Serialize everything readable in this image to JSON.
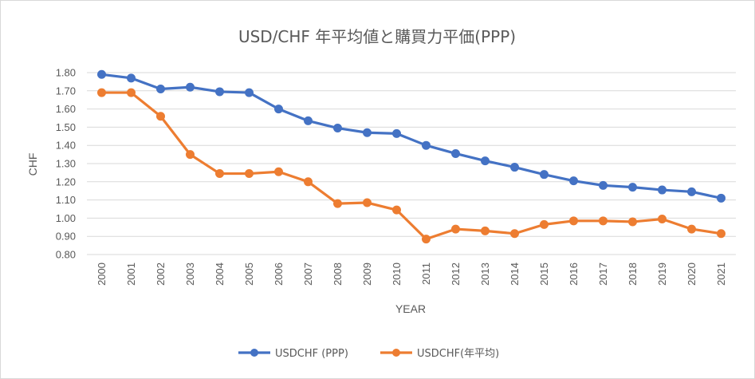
{
  "chart_data": {
    "type": "line",
    "title": "USD/CHF 年平均値と購買力平価(PPP)",
    "xlabel": "YEAR",
    "ylabel": "CHF",
    "ylim": [
      0.8,
      1.8
    ],
    "y_ticks": [
      "0.80",
      "0.90",
      "1.00",
      "1.10",
      "1.20",
      "1.30",
      "1.40",
      "1.50",
      "1.60",
      "1.70",
      "1.80"
    ],
    "grid": true,
    "legend_position": "bottom",
    "categories": [
      "2000",
      "2001",
      "2002",
      "2003",
      "2004",
      "2005",
      "2006",
      "2007",
      "2008",
      "2009",
      "2010",
      "2011",
      "2012",
      "2013",
      "2014",
      "2015",
      "2016",
      "2017",
      "2018",
      "2019",
      "2020",
      "2021"
    ],
    "series": [
      {
        "name": "USDCHF (PPP)",
        "color": "#4472c4",
        "values": [
          1.79,
          1.77,
          1.71,
          1.72,
          1.695,
          1.69,
          1.6,
          1.535,
          1.495,
          1.47,
          1.465,
          1.4,
          1.355,
          1.315,
          1.28,
          1.24,
          1.205,
          1.18,
          1.17,
          1.155,
          1.145,
          1.11
        ]
      },
      {
        "name": "USDCHF(年平均)",
        "color": "#ed7d31",
        "values": [
          1.69,
          1.69,
          1.56,
          1.35,
          1.245,
          1.245,
          1.255,
          1.2,
          1.08,
          1.085,
          1.045,
          0.885,
          0.94,
          0.93,
          0.915,
          0.965,
          0.985,
          0.985,
          0.98,
          0.995,
          0.94,
          0.915
        ]
      }
    ]
  }
}
